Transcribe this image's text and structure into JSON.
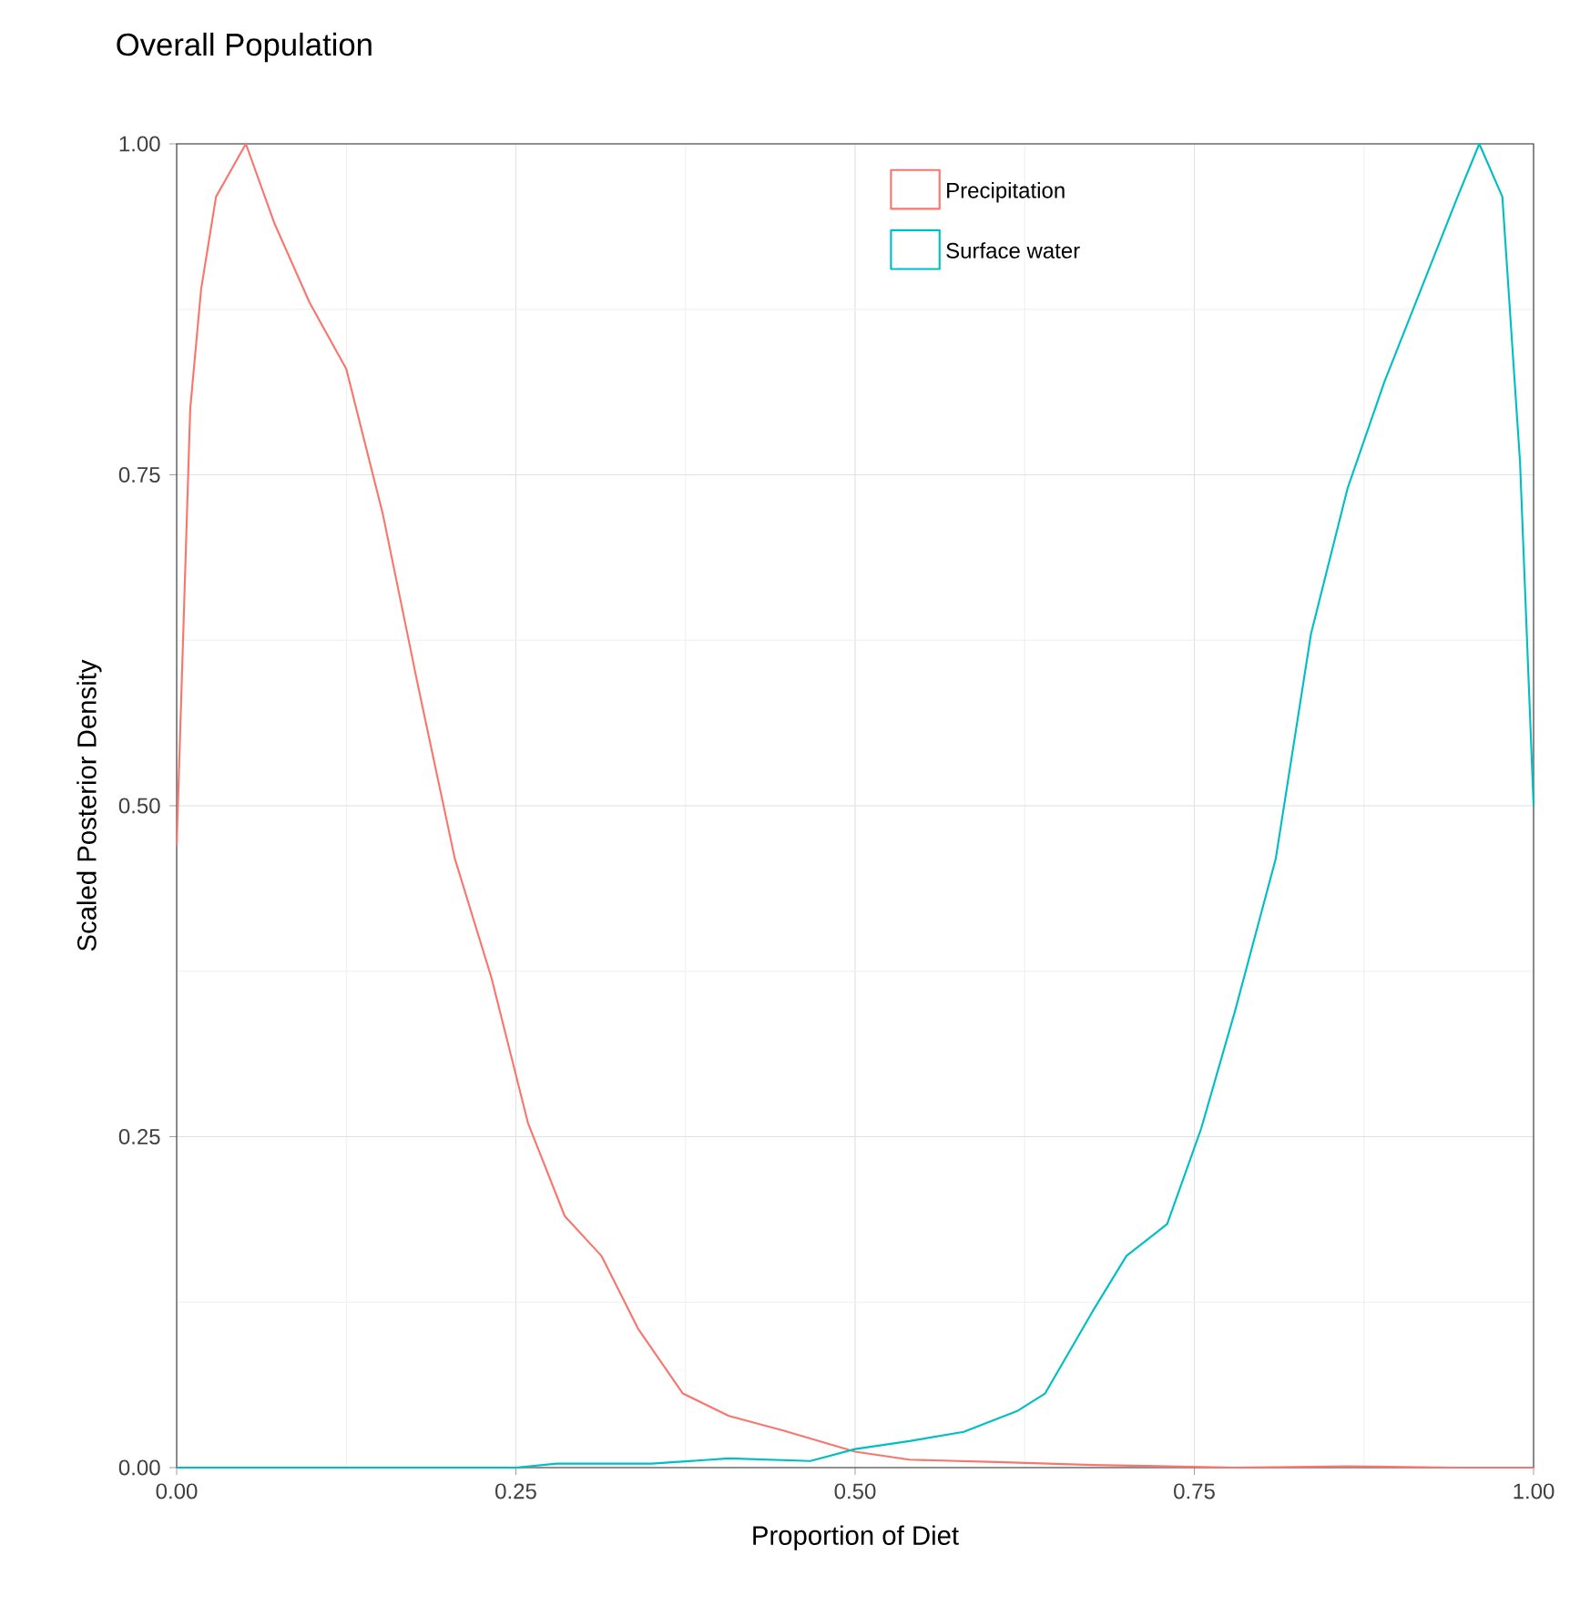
{
  "chart_data": {
    "type": "line",
    "title": "Overall Population",
    "xlabel": "Proportion of Diet",
    "ylabel": "Scaled Posterior Density",
    "xlim": [
      0,
      1
    ],
    "ylim": [
      0,
      1
    ],
    "xticks": [
      {
        "value": 0,
        "label": "0.00"
      },
      {
        "value": 0.25,
        "label": "0.25"
      },
      {
        "value": 0.5,
        "label": "0.50"
      },
      {
        "value": 0.75,
        "label": "0.75"
      },
      {
        "value": 1,
        "label": "1.00"
      }
    ],
    "yticks": [
      {
        "value": 0,
        "label": "0.00"
      },
      {
        "value": 0.25,
        "label": "0.25"
      },
      {
        "value": 0.5,
        "label": "0.50"
      },
      {
        "value": 0.75,
        "label": "0.75"
      },
      {
        "value": 1,
        "label": "1.00"
      }
    ],
    "grid": true,
    "legend": "top right",
    "series": [
      {
        "name": "Precipitation",
        "color": "#f8766d",
        "x": [
          0,
          0.01,
          0.018,
          0.029,
          0.051,
          0.072,
          0.098,
          0.125,
          0.152,
          0.178,
          0.205,
          0.232,
          0.259,
          0.286,
          0.313,
          0.34,
          0.373,
          0.407,
          0.447,
          0.5,
          0.54,
          0.61,
          0.675,
          0.78,
          0.863,
          0.94,
          1
        ],
        "values": [
          0.47,
          0.8,
          0.89,
          0.96,
          1.0,
          0.94,
          0.88,
          0.83,
          0.72,
          0.59,
          0.46,
          0.37,
          0.26,
          0.19,
          0.16,
          0.105,
          0.056,
          0.039,
          0.028,
          0.012,
          0.006,
          0.004,
          0.002,
          0,
          0.001,
          0,
          0
        ]
      },
      {
        "name": "Surface water",
        "color": "#00bfc4",
        "x": [
          0,
          0.25,
          0.28,
          0.35,
          0.407,
          0.467,
          0.5,
          0.54,
          0.58,
          0.62,
          0.64,
          0.675,
          0.7,
          0.73,
          0.755,
          0.78,
          0.81,
          0.836,
          0.863,
          0.89,
          0.917,
          0.944,
          0.96,
          0.977,
          0.99,
          1
        ],
        "values": [
          0,
          0,
          0.003,
          0.003,
          0.007,
          0.005,
          0.014,
          0.02,
          0.027,
          0.043,
          0.056,
          0.118,
          0.16,
          0.184,
          0.256,
          0.345,
          0.46,
          0.63,
          0.74,
          0.82,
          0.89,
          0.96,
          1.0,
          0.96,
          0.76,
          0.5
        ]
      }
    ]
  }
}
